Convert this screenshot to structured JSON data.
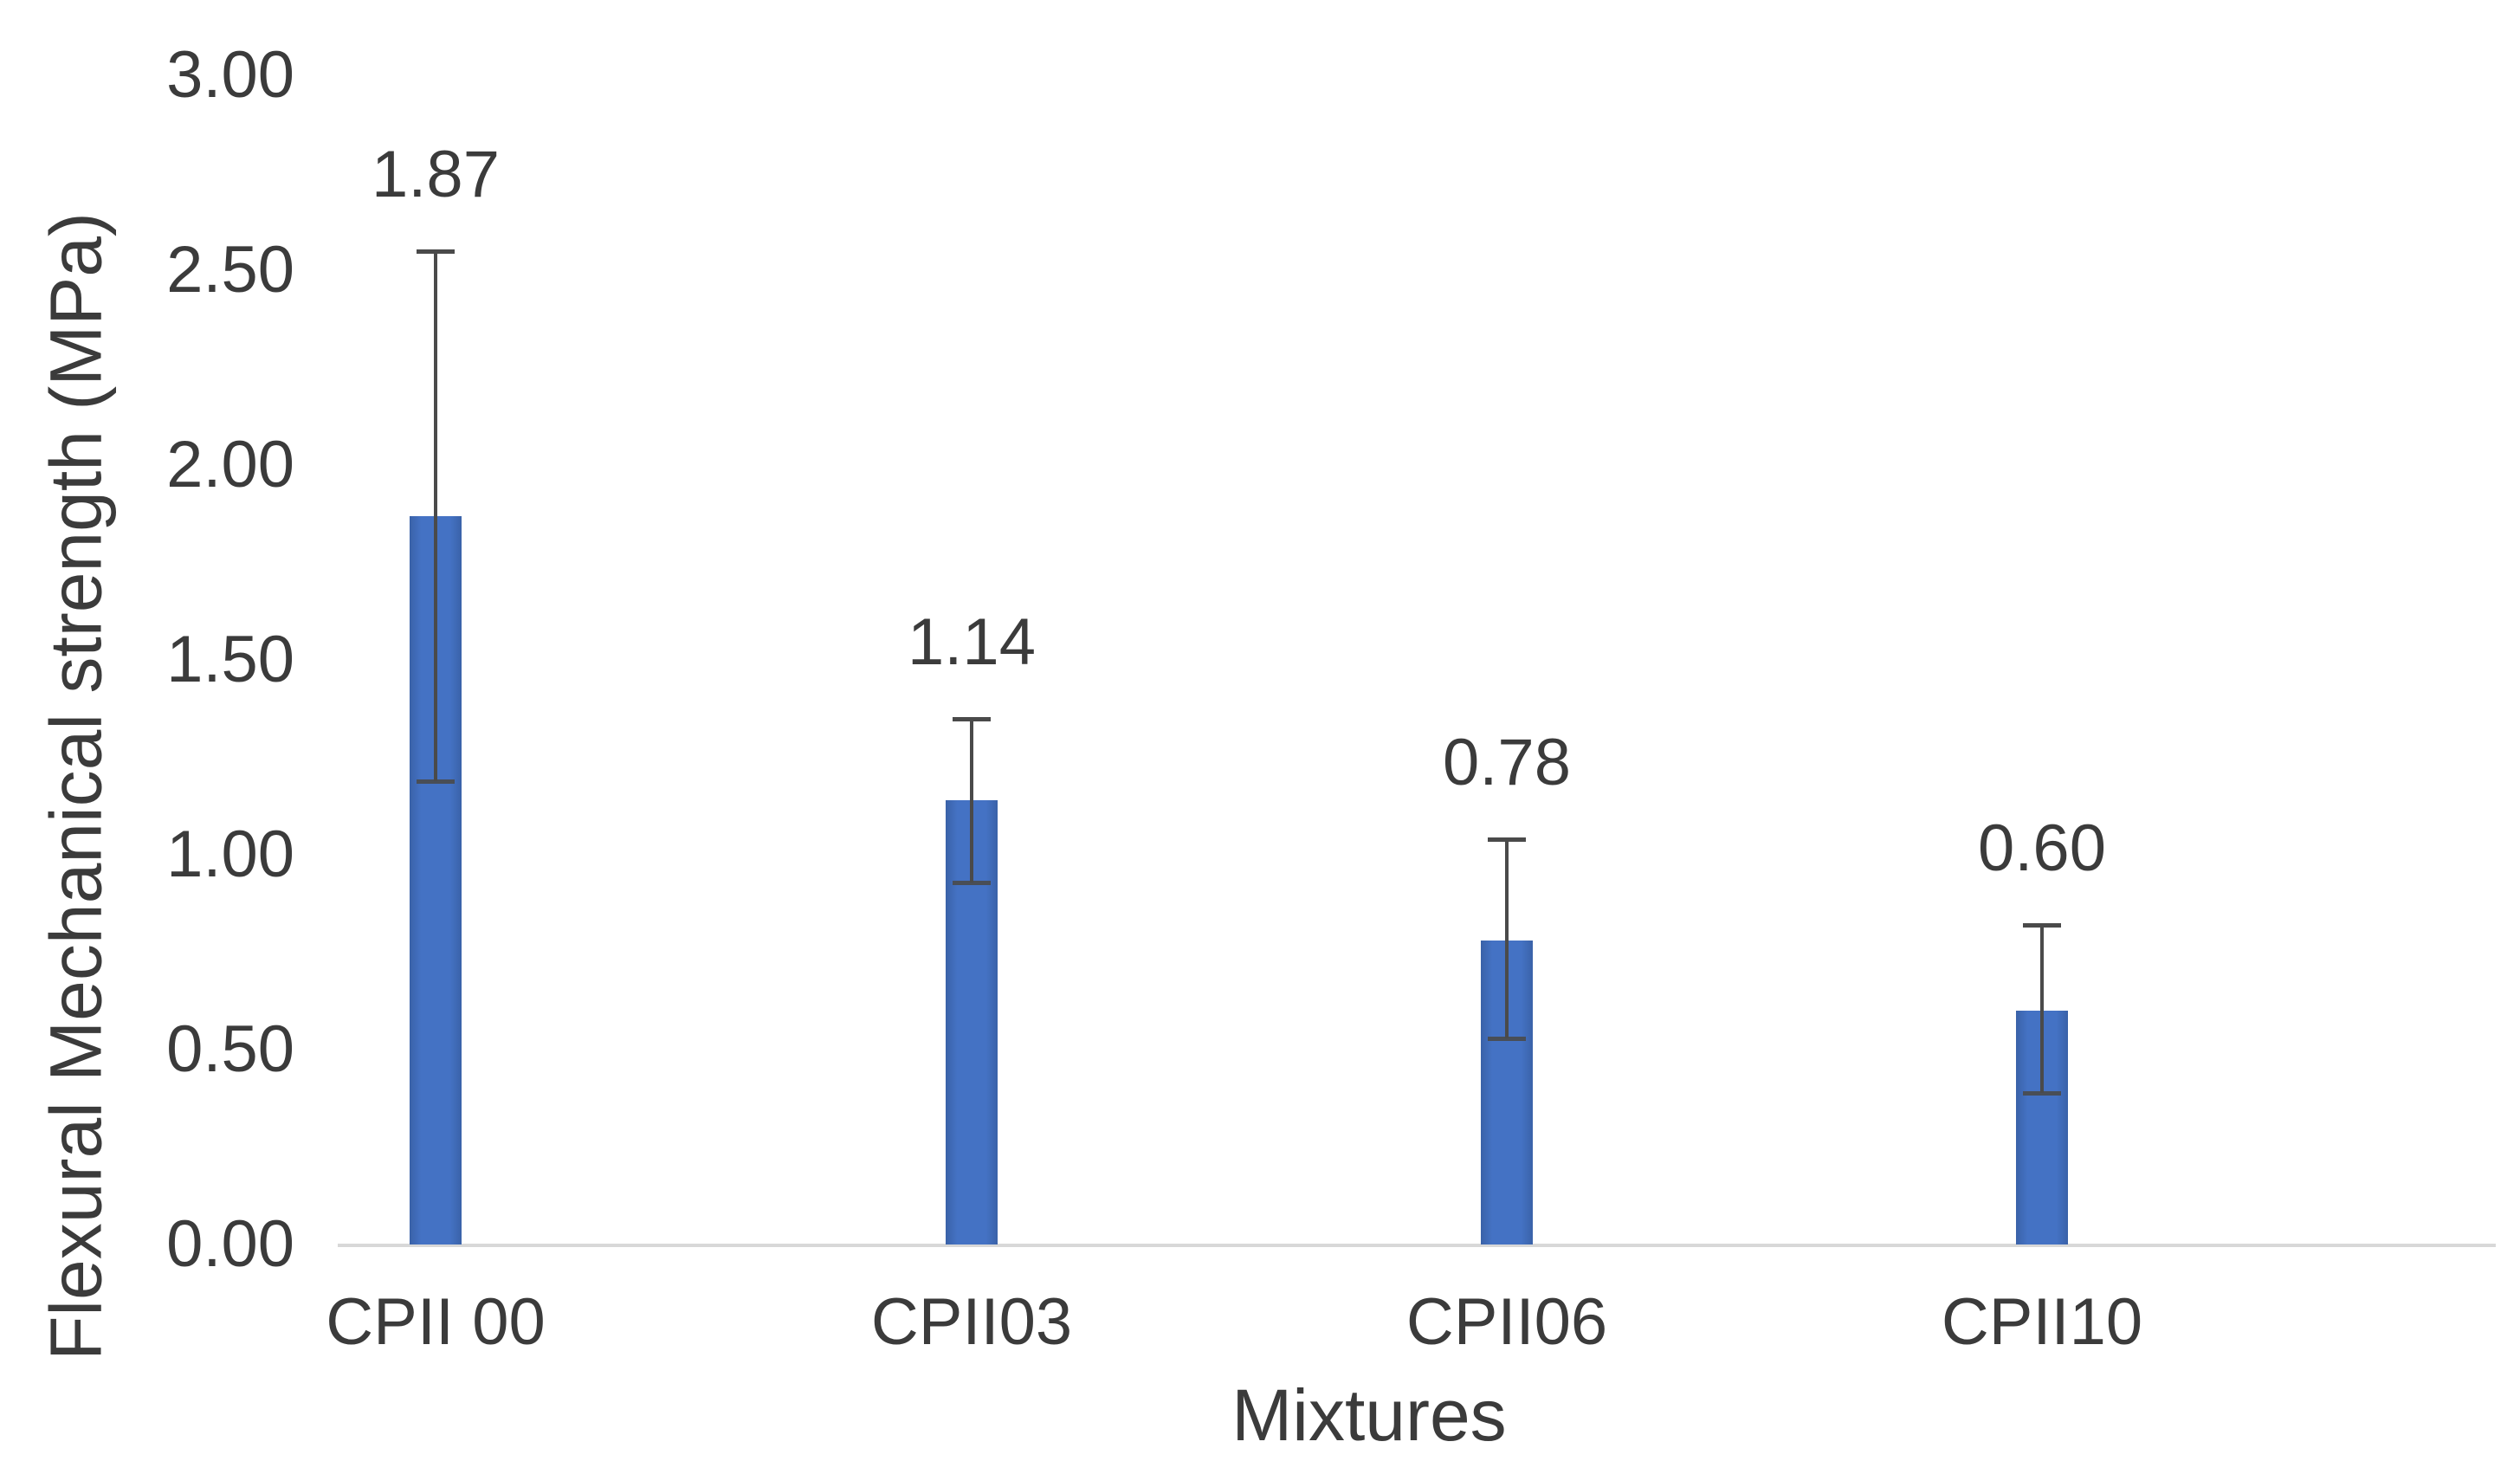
{
  "chart_data": {
    "type": "bar",
    "title": "",
    "xlabel": "Mixtures",
    "ylabel": "Flexural Mechanical strength (MPa)",
    "categories": [
      "CPII 00",
      "CPII03",
      "CPII06",
      "CPII10"
    ],
    "values": [
      1.87,
      1.14,
      0.78,
      0.6
    ],
    "data_labels": [
      "1.87",
      "1.14",
      "0.78",
      "0.60"
    ],
    "error_plus": [
      0.68,
      0.21,
      0.26,
      0.22
    ],
    "error_minus": [
      0.68,
      0.21,
      0.25,
      0.21
    ],
    "yticks": [
      "0.00",
      "0.50",
      "1.00",
      "1.50",
      "2.00",
      "2.50",
      "3.00"
    ],
    "ytick_values": [
      0.0,
      0.5,
      1.0,
      1.5,
      2.0,
      2.5,
      3.0
    ],
    "ylim": [
      0.0,
      3.0
    ],
    "grid": false,
    "legend": "none",
    "bar_color": "#4472c4",
    "bar_edge_color": "#3a62a8",
    "error_bar_color": "#4a4a4a",
    "axis_line_color": "#d8d8d8",
    "text_color": "#3b3b3b"
  }
}
